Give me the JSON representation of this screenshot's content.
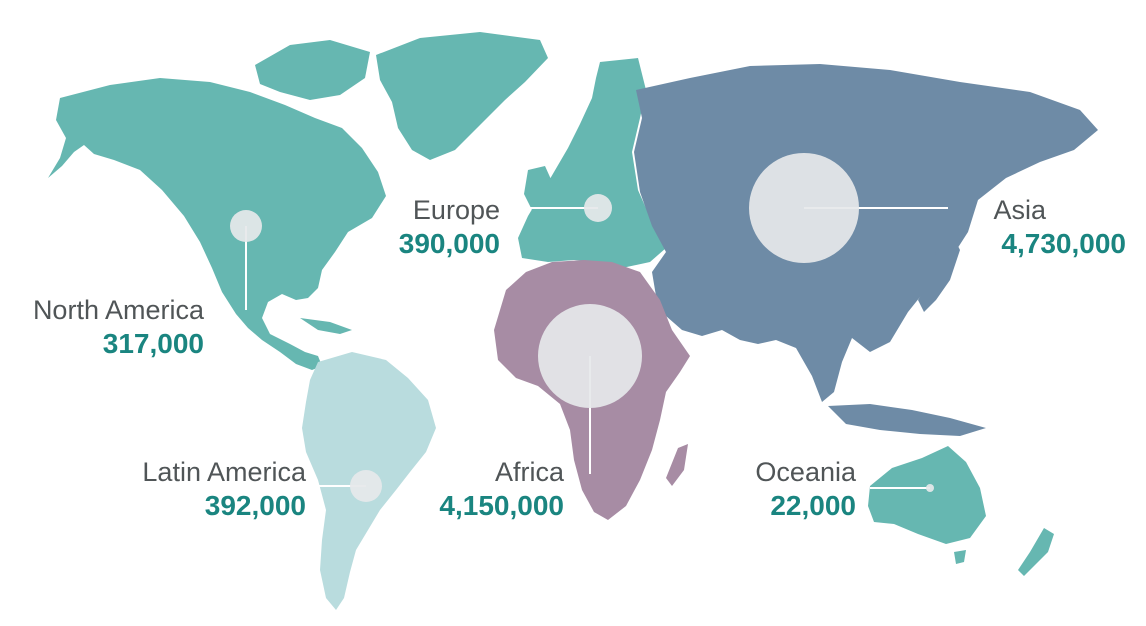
{
  "colors": {
    "teal": "#66b7b1",
    "latin": "#b9dcde",
    "asia": "#6e8ba6",
    "africa": "#a78ca4",
    "bubble": "#e6e8ea",
    "leader": "#ffffff",
    "value_text": "#1a8580",
    "name_text": "#505557"
  },
  "regions": [
    {
      "id": "north-america",
      "name": "North America",
      "value_text": "317,000",
      "value": 317000
    },
    {
      "id": "europe",
      "name": "Europe",
      "value_text": "390,000",
      "value": 390000
    },
    {
      "id": "asia",
      "name": "Asia",
      "value_text": "4,730,000",
      "value": 4730000
    },
    {
      "id": "latin-america",
      "name": "Latin America",
      "value_text": "392,000",
      "value": 392000
    },
    {
      "id": "africa",
      "name": "Africa",
      "value_text": "4,150,000",
      "value": 4150000
    },
    {
      "id": "oceania",
      "name": "Oceania",
      "value_text": "22,000",
      "value": 22000
    }
  ]
}
